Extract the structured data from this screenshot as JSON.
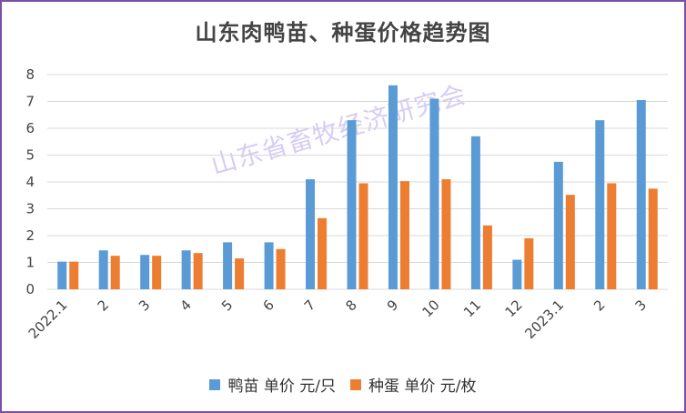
{
  "chart_data": {
    "type": "bar",
    "title": "山东肉鸭苗、种蛋价格趋势图",
    "watermark": "山东省畜牧经济研究会",
    "categories": [
      "2022.1",
      "2",
      "3",
      "4",
      "5",
      "6",
      "7",
      "8",
      "9",
      "10",
      "11",
      "12",
      "2023.1",
      "2",
      "3"
    ],
    "series": [
      {
        "name": "鸭苗 单价 元/只",
        "color": "#5b9bd5",
        "values": [
          1.03,
          1.45,
          1.28,
          1.45,
          1.75,
          1.75,
          4.1,
          6.3,
          7.6,
          7.1,
          5.7,
          1.1,
          4.75,
          6.3,
          7.05
        ]
      },
      {
        "name": "种蛋 单价 元/枚",
        "color": "#ed7d31",
        "values": [
          1.03,
          1.25,
          1.25,
          1.35,
          1.15,
          1.5,
          2.65,
          3.95,
          4.03,
          4.1,
          2.38,
          1.9,
          3.52,
          3.95,
          3.75
        ]
      }
    ],
    "y_ticks": [
      "0",
      "1",
      "2",
      "3",
      "4",
      "5",
      "6",
      "7",
      "8"
    ],
    "ylim": [
      0,
      8
    ],
    "grid": true,
    "legend_position": "bottom"
  }
}
